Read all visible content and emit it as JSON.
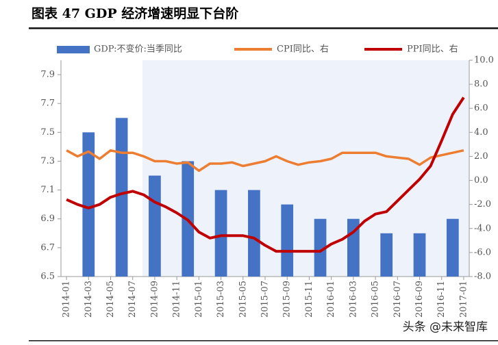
{
  "chart_data": {
    "type": "bar-line",
    "title": "图表 47 GDP 经济增速明显下台阶",
    "watermark": "头条 @未来智库",
    "categories": [
      "2014-01",
      null,
      "2014-03",
      null,
      "2014-05",
      null,
      "2014-07",
      null,
      "2014-09",
      null,
      "2014-11",
      null,
      "2015-01",
      null,
      "2015-03",
      null,
      "2015-05",
      null,
      "2015-07",
      null,
      "2015-09",
      null,
      "2015-11",
      null,
      "2016-01",
      null,
      "2016-03",
      null,
      "2016-05",
      null,
      "2016-07",
      null,
      "2016-09",
      null,
      "2016-11",
      null,
      "2017-01"
    ],
    "series": [
      {
        "name": "GDP:不变价:当季同比",
        "type": "bar",
        "color": "#4472c4",
        "axis": "y",
        "values": [
          null,
          null,
          7.5,
          null,
          null,
          7.6,
          null,
          null,
          7.2,
          null,
          null,
          7.3,
          null,
          null,
          7.1,
          null,
          null,
          7.1,
          null,
          null,
          7.0,
          null,
          null,
          6.9,
          null,
          null,
          6.9,
          null,
          null,
          6.8,
          null,
          null,
          6.8,
          null,
          null,
          6.9,
          null
        ]
      },
      {
        "name": "CPI同比、右",
        "type": "line",
        "color": "#ed7d31",
        "axis": "y2",
        "values": [
          2.5,
          2.0,
          2.4,
          1.8,
          2.5,
          2.3,
          2.3,
          2.0,
          1.6,
          1.6,
          1.4,
          1.5,
          0.8,
          1.4,
          1.4,
          1.5,
          1.2,
          1.4,
          1.6,
          2.0,
          1.6,
          1.3,
          1.5,
          1.6,
          1.8,
          2.3,
          2.3,
          2.3,
          2.3,
          2.0,
          1.9,
          1.8,
          1.3,
          1.9,
          2.1,
          2.3,
          2.5
        ]
      },
      {
        "name": "PPI同比、右",
        "type": "line",
        "color": "#c00000",
        "axis": "y2",
        "values": [
          -1.6,
          -2.0,
          -2.3,
          -2.0,
          -1.4,
          -1.1,
          -0.9,
          -1.2,
          -1.8,
          -2.2,
          -2.7,
          -3.3,
          -4.3,
          -4.8,
          -4.6,
          -4.6,
          -4.6,
          -4.8,
          -5.4,
          -5.9,
          -5.9,
          -5.9,
          -5.9,
          -5.9,
          -5.3,
          -4.9,
          -4.3,
          -3.4,
          -2.8,
          -2.6,
          -1.7,
          -0.8,
          0.1,
          1.2,
          3.3,
          5.5,
          6.9
        ]
      }
    ],
    "ylim": [
      6.5,
      8.0
    ],
    "yticks": [
      6.5,
      6.7,
      6.9,
      7.1,
      7.3,
      7.5,
      7.7,
      7.9
    ],
    "y2lim": [
      -8,
      10
    ],
    "y2ticks": [
      {
        "value": -8,
        "label": "-8.0"
      },
      {
        "value": -6,
        "label": "-6.0"
      },
      {
        "value": -4,
        "label": "-4.0"
      },
      {
        "value": -2,
        "label": "-2.0"
      },
      {
        "value": 0,
        "label": "0.0"
      },
      {
        "value": 2,
        "label": "2.0"
      },
      {
        "value": 4,
        "label": "4.0"
      },
      {
        "value": 6,
        "label": "6.0"
      },
      {
        "value": 8,
        "label": "8.0"
      },
      {
        "value": 10,
        "label": "10.0"
      }
    ],
    "legend": "top"
  }
}
